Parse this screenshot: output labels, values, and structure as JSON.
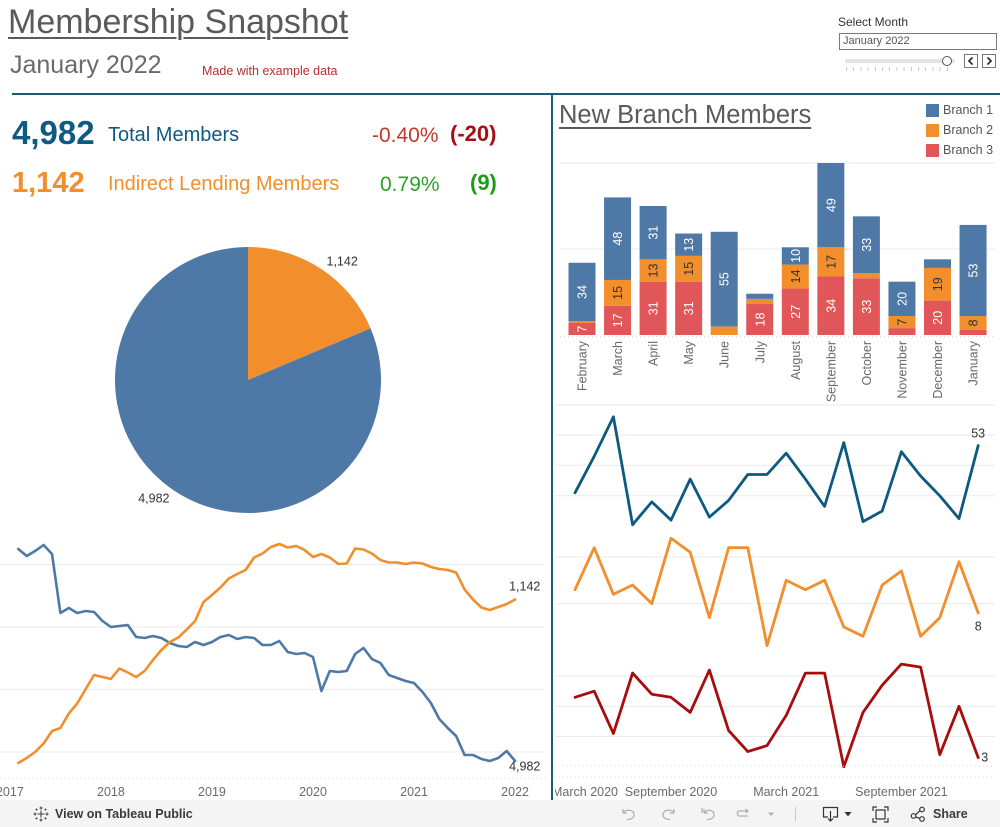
{
  "header": {
    "title": "Membership Snapshot",
    "subtitle": "January 2022",
    "note": "Made with example data"
  },
  "month_filter": {
    "label": "Select Month",
    "value": "January 2022",
    "slider_position": 0.93,
    "prev_icon": "chevron-left-icon",
    "next_icon": "chevron-right-icon"
  },
  "kpis": [
    {
      "value": "4,982",
      "label": "Total Members",
      "pct_change": "-0.40%",
      "abs_change": "(-20)",
      "color": "#0f5a82",
      "pct_color": "#c0392b",
      "abs_color": "#a50f15"
    },
    {
      "value": "1,142",
      "label": "Indirect Lending Members",
      "pct_change": "0.79%",
      "abs_change": "(9)",
      "color": "#f28e2b",
      "pct_color": "#2ca02c",
      "abs_color": "#1a9e1a"
    }
  ],
  "chart_data": [
    {
      "type": "pie",
      "title": "",
      "slices": [
        {
          "label": "Indirect Lending Members",
          "value": 1142,
          "display": "1,142",
          "color": "#f28e2b"
        },
        {
          "label": "Total Members",
          "value": 4982,
          "display": "4,982",
          "color": "#4e79a7"
        }
      ]
    },
    {
      "type": "line",
      "title": "",
      "x_start": "2017-02",
      "x_frequency": "monthly",
      "x_ticks": [
        "2017",
        "2018",
        "2019",
        "2020",
        "2021",
        "2022"
      ],
      "grid": true,
      "y_gridlines": [
        5000,
        5125,
        5250,
        5375
      ],
      "series": [
        {
          "name": "Total Members",
          "color": "#4e79a7",
          "ylim": [
            4954,
            5434
          ],
          "end_label": "4,982",
          "values": [
            5406,
            5392,
            5402,
            5414,
            5396,
            5278,
            5288,
            5278,
            5282,
            5280,
            5262,
            5250,
            5252,
            5254,
            5230,
            5228,
            5232,
            5228,
            5218,
            5212,
            5210,
            5220,
            5214,
            5220,
            5230,
            5234,
            5226,
            5230,
            5228,
            5214,
            5214,
            5222,
            5200,
            5196,
            5198,
            5190,
            5122,
            5162,
            5160,
            5162,
            5196,
            5208,
            5186,
            5178,
            5154,
            5148,
            5142,
            5138,
            5120,
            5098,
            5066,
            5048,
            5032,
            4994,
            4994,
            4986,
            4982,
            4988,
            5002,
            4982
          ]
        },
        {
          "name": "Indirect Lending Members",
          "color": "#f28e2b",
          "ylim": [
            791,
            1271
          ],
          "end_label": "1,142",
          "values": [
            815,
            825,
            837,
            854,
            879,
            885,
            914,
            934,
            963,
            991,
            987,
            983,
            1004,
            996,
            987,
            999,
            1021,
            1041,
            1057,
            1066,
            1082,
            1099,
            1137,
            1151,
            1166,
            1184,
            1193,
            1201,
            1226,
            1234,
            1247,
            1253,
            1246,
            1249,
            1241,
            1227,
            1233,
            1226,
            1213,
            1214,
            1244,
            1242,
            1234,
            1221,
            1216,
            1216,
            1213,
            1216,
            1214,
            1207,
            1203,
            1201,
            1196,
            1162,
            1142,
            1126,
            1121,
            1127,
            1133,
            1142
          ]
        }
      ]
    },
    {
      "type": "bar",
      "stacked": true,
      "title": "New Branch Members",
      "xlabel": "",
      "ylabel": "",
      "ylim": [
        0,
        100
      ],
      "y_gridlines": [
        50,
        100
      ],
      "legend": "top-right",
      "categories": [
        "February",
        "March",
        "April",
        "May",
        "June",
        "July",
        "August",
        "September",
        "October",
        "November",
        "December",
        "January"
      ],
      "series": [
        {
          "name": "Branch 1",
          "color": "#4e79a7",
          "label_color": "#ffffff",
          "values": [
            34,
            48,
            31,
            13,
            55,
            3,
            10,
            49,
            33,
            20,
            5,
            53
          ]
        },
        {
          "name": "Branch 2",
          "color": "#f28e2b",
          "label_color": "#333333",
          "values": [
            1,
            15,
            13,
            15,
            5,
            3,
            14,
            17,
            3,
            7,
            19,
            8
          ]
        },
        {
          "name": "Branch 3",
          "color": "#e15759",
          "label_color": "#ffffff",
          "values": [
            7,
            17,
            31,
            31,
            0,
            18,
            27,
            34,
            33,
            4,
            20,
            3
          ]
        }
      ]
    },
    {
      "type": "line",
      "title": "",
      "x_start": "2020-04",
      "x_frequency": "monthly",
      "x_ticks": [
        {
          "label": "March 2020",
          "month": "2020-03"
        },
        {
          "label": "September 2020",
          "month": "2020-09"
        },
        {
          "label": "March 2021",
          "month": "2021-03"
        },
        {
          "label": "September 2021",
          "month": "2021-09"
        }
      ],
      "grid": true,
      "series": [
        {
          "name": "Branch 1",
          "color": "#0c5a80",
          "ylim": [
            0,
            80
          ],
          "y_gridlines": [
            20,
            40,
            60
          ],
          "end_label": "53",
          "values": [
            22,
            46,
            72,
            1,
            16,
            4,
            31,
            6,
            17,
            34,
            34,
            48,
            31,
            13,
            55,
            3,
            10,
            49,
            33,
            20,
            5,
            53
          ]
        },
        {
          "name": "Branch 2",
          "color": "#f28e2b",
          "ylim": [
            0,
            26
          ],
          "y_gridlines": [
            10,
            20
          ],
          "end_label": "8",
          "values": [
            13,
            22,
            12,
            14,
            10,
            24,
            21,
            7,
            22,
            22,
            1,
            15,
            13,
            15,
            5,
            3,
            14,
            17,
            3,
            7,
            19,
            8
          ]
        },
        {
          "name": "Branch 3",
          "color": "#a80d0d",
          "ylim": [
            0,
            37
          ],
          "y_gridlines": [
            10,
            20,
            30
          ],
          "end_label": "3",
          "values": [
            23,
            25,
            11,
            31,
            24,
            23,
            18,
            32,
            12,
            5,
            7,
            17,
            31,
            31,
            0,
            18,
            27,
            34,
            33,
            4,
            20,
            3
          ]
        }
      ]
    }
  ],
  "toolbar": {
    "view_public_label": "View on Tableau Public",
    "share_label": "Share",
    "icons": [
      "tableau-logo-icon",
      "undo-icon",
      "redo-icon",
      "revert-icon",
      "refresh-icon",
      "download-icon",
      "fullscreen-icon",
      "share-icon"
    ]
  }
}
